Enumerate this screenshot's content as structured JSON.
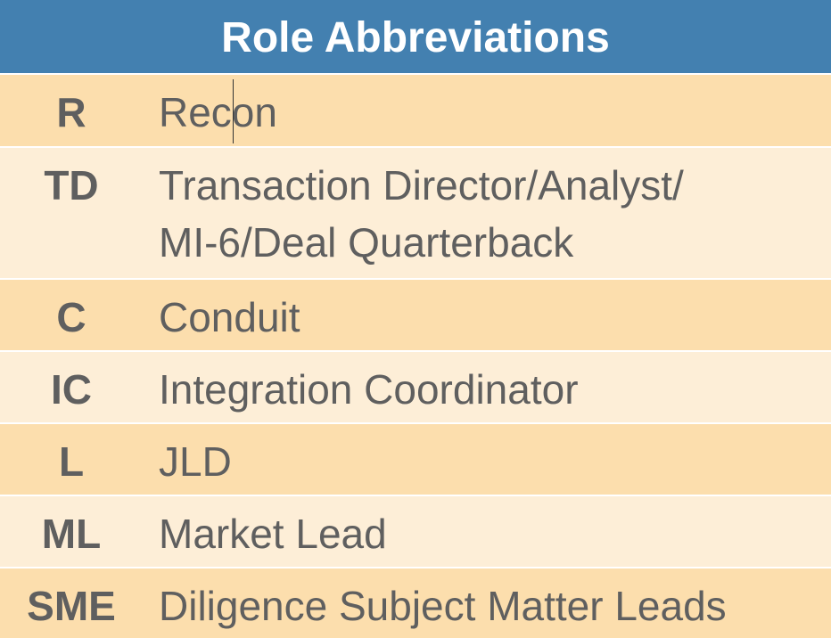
{
  "table": {
    "title": "Role Abbreviations",
    "rows": [
      {
        "abbr": "R",
        "desc": "Recon"
      },
      {
        "abbr": "TD",
        "desc": "Transaction Director/Analyst/\nMI-6/Deal Quarterback"
      },
      {
        "abbr": "C",
        "desc": "Conduit"
      },
      {
        "abbr": "IC",
        "desc": "Integration Coordinator"
      },
      {
        "abbr": "L",
        "desc": "JLD"
      },
      {
        "abbr": "ML",
        "desc": "Market Lead"
      },
      {
        "abbr": "SME",
        "desc": "Diligence Subject Matter Leads"
      }
    ]
  },
  "colors": {
    "header_bg": "#4380b0",
    "row_odd_bg": "#fcdead",
    "row_even_bg": "#fdeed7",
    "text": "#5f5f5f"
  }
}
